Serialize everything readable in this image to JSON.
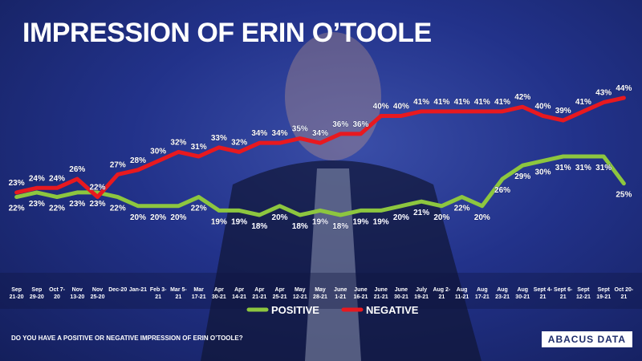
{
  "chart_data": {
    "type": "line",
    "title": "IMPRESSION OF ERIN O’TOOLE",
    "note": "DO YOU HAVE A POSITIVE OR NEGATIVE IMPRESSION OF ERIN O’TOOLE?",
    "source": "ABACUS DATA",
    "categories": [
      "Sep 21-20",
      "Sep 29-20",
      "Oct 7-20",
      "Nov 13-20",
      "Nov 25-20",
      "Dec-20",
      "Jan-21",
      "Feb 3-21",
      "Mar 5-21",
      "Mar 17-21",
      "Apr 30-21",
      "Apr 14-21",
      "Apr 21-21",
      "Apr 25-21",
      "May 12-21",
      "May 28-21",
      "June 1-21",
      "June 16-21",
      "June 21-21",
      "June 30-21",
      "July 19-21",
      "Aug 2-21",
      "Aug 11-21",
      "Aug 17-21",
      "Aug 23-21",
      "Aug 30-21",
      "Sept 4-21",
      "Sept 6-21",
      "Sept 12-21",
      "Sept 19-21",
      "Oct 20-21"
    ],
    "series": [
      {
        "name": "POSITIVE",
        "color": "#8dc63f",
        "values": [
          22,
          23,
          22,
          23,
          23,
          22,
          20,
          20,
          20,
          22,
          19,
          19,
          18,
          20,
          18,
          19,
          18,
          19,
          19,
          20,
          21,
          20,
          22,
          20,
          26,
          29,
          30,
          31,
          31,
          31,
          25
        ],
        "value_labels": [
          "22%",
          "23%",
          "22%",
          "23%",
          "23%",
          "22%",
          "20%",
          "20%",
          "20%",
          "22%",
          "19%",
          "19%",
          "18%",
          "20%",
          "18%",
          "19%",
          "18%",
          "19%",
          "19%",
          "20%",
          "21%",
          "20%",
          "22%",
          "20%",
          "26%",
          "29%",
          "30%",
          "31%",
          "31%",
          "31%",
          "25%"
        ]
      },
      {
        "name": "NEGATIVE",
        "color": "#e8191f",
        "values": [
          23,
          24,
          24,
          26,
          22,
          27,
          28,
          30,
          32,
          31,
          33,
          32,
          34,
          34,
          35,
          34,
          36,
          36,
          40,
          40,
          41,
          41,
          41,
          41,
          41,
          42,
          40,
          39,
          41,
          43,
          44
        ],
        "value_labels": [
          "23%",
          "24%",
          "24%",
          "26%",
          "22%",
          "27%",
          "28%",
          "30%",
          "32%",
          "31%",
          "33%",
          "32%",
          "34%",
          "34%",
          "35%",
          "34%",
          "36%",
          "36%",
          "40%",
          "40%",
          "41%",
          "41%",
          "41%",
          "41%",
          "41%",
          "42%",
          "40%",
          "39%",
          "41%",
          "43%",
          "44%"
        ]
      }
    ]
  }
}
